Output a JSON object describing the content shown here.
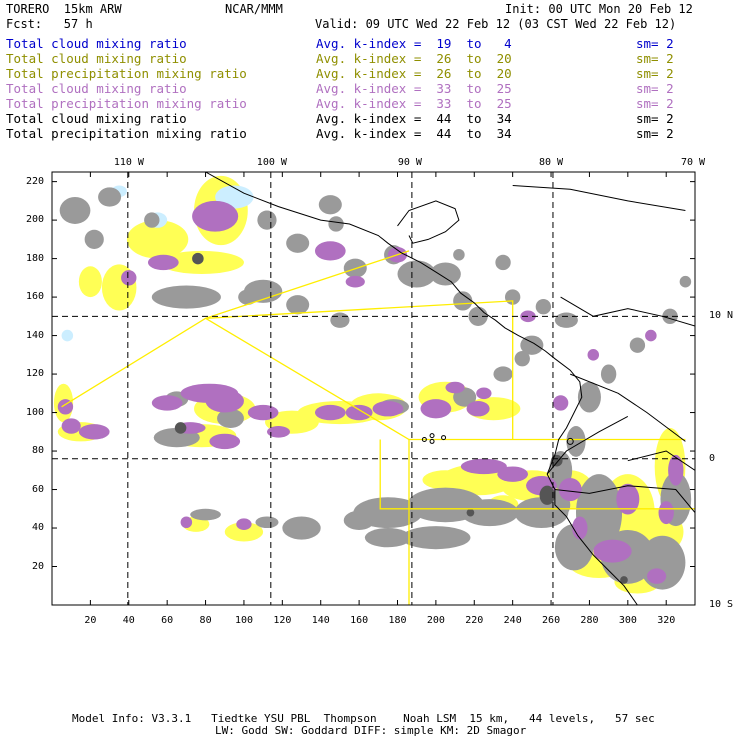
{
  "header": {
    "model_title": "TORERO  15km ARW",
    "center": "NCAR/MMM",
    "init": "Init: 00 UTC Mon 20 Feb 12",
    "forecast": "Fcst:   57 h",
    "valid": "Valid: 09 UTC Wed 22 Feb 12 (03 CST Wed 22 Feb 12)"
  },
  "legend": [
    {
      "field": "Total cloud mixing ratio",
      "stat": "Avg. k-index =  19  to   4",
      "sm": "sm= 2",
      "color": "#0000cc"
    },
    {
      "field": "Total cloud mixing ratio",
      "stat": "Avg. k-index =  26  to  20",
      "sm": "sm= 2",
      "color": "#8f8f00"
    },
    {
      "field": "Total precipitation mixing ratio",
      "stat": "Avg. k-index =  26  to  20",
      "sm": "sm= 2",
      "color": "#8f8f00"
    },
    {
      "field": "Total cloud mixing ratio",
      "stat": "Avg. k-index =  33  to  25",
      "sm": "sm= 2",
      "color": "#b070c0"
    },
    {
      "field": "Total precipitation mixing ratio",
      "stat": "Avg. k-index =  33  to  25",
      "sm": "sm= 2",
      "color": "#b070c0"
    },
    {
      "field": "Total cloud mixing ratio",
      "stat": "Avg. k-index =  44  to  34",
      "sm": "sm= 2",
      "color": "#000000"
    },
    {
      "field": "Total precipitation mixing ratio",
      "stat": "Avg. k-index =  44  to  34",
      "sm": "sm= 2",
      "color": "#000000"
    }
  ],
  "map": {
    "top_lon_labels": [
      "110 W",
      "100 W",
      "90 W",
      "80 W",
      "70 W"
    ],
    "right_lat_labels": [
      "10 N",
      "0",
      "10 S"
    ],
    "x_ticks": [
      "20",
      "40",
      "60",
      "80",
      "100",
      "120",
      "140",
      "160",
      "180",
      "200",
      "220",
      "240",
      "260",
      "280",
      "300",
      "320"
    ],
    "y_ticks": [
      "220",
      "200",
      "180",
      "160",
      "140",
      "120",
      "100",
      "80",
      "60",
      "40",
      "20"
    ],
    "x_range": [
      0,
      335
    ],
    "y_range": [
      0,
      225
    ],
    "colors": {
      "yellow": "#ffff55",
      "light_cyan": "#cceeff",
      "purple": "#b070c0",
      "gray": "#9a9a9a",
      "dark_gray": "#555555",
      "box_line": "#ffee00"
    }
  },
  "footer": {
    "line1": "Model Info: V3.3.1   Tiedtke YSU PBL  Thompson    Noah LSM  15 km,   44 levels,   57 sec",
    "line2": "LW: Godd SW: Goddard DIFF: simple KM: 2D Smagor"
  }
}
